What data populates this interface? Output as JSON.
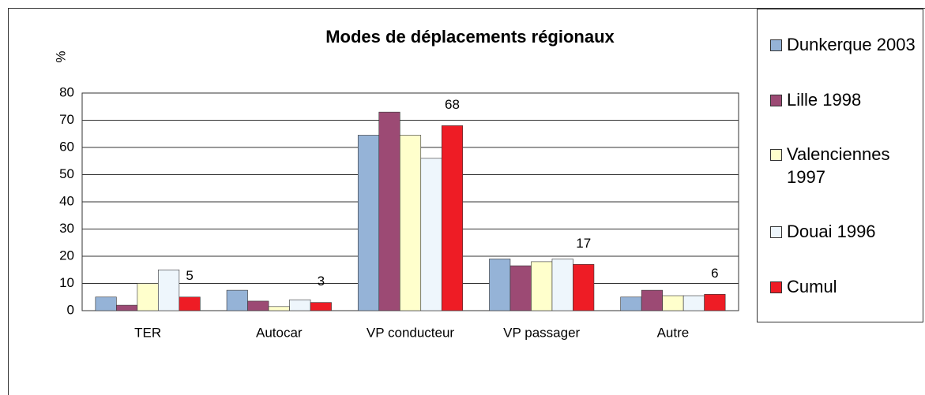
{
  "chart_data": {
    "type": "bar",
    "title": "Modes de déplacements régionaux",
    "y_label": "%",
    "categories": [
      "TER",
      "Autocar",
      "VP conducteur",
      "VP passager",
      "Autre"
    ],
    "series": [
      {
        "name": "Dunkerque 2003",
        "color": "#95b3d7",
        "values": [
          5,
          7.5,
          64.5,
          19,
          5
        ]
      },
      {
        "name": "Lille 1998",
        "color": "#9c4a74",
        "values": [
          2,
          3.5,
          73,
          16.5,
          7.5
        ]
      },
      {
        "name": "Valenciennes 1997",
        "color": "#ffffcc",
        "values": [
          10,
          1.5,
          64.5,
          18,
          5.5
        ]
      },
      {
        "name": "Douai 1996",
        "color": "#eef6fc",
        "values": [
          15,
          4,
          56,
          19,
          5.5
        ]
      },
      {
        "name": "Cumul",
        "color": "#ee1c25",
        "values": [
          5,
          3,
          68,
          17,
          6
        ],
        "show_labels": true
      }
    ],
    "ylim": [
      0,
      80
    ],
    "yticks": [
      0,
      10,
      20,
      30,
      40,
      50,
      60,
      70,
      80
    ],
    "grid": true,
    "legend": "right"
  }
}
